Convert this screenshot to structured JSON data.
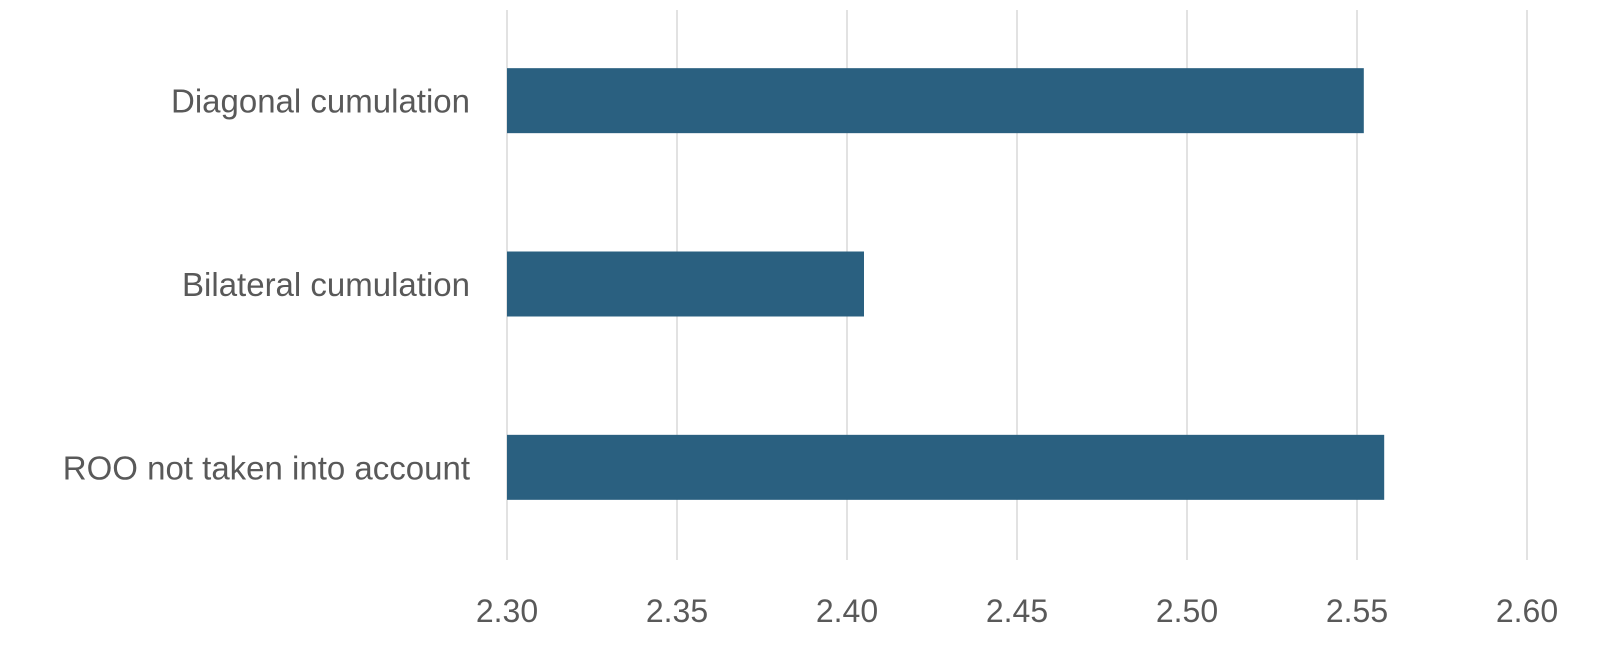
{
  "chart_data": {
    "type": "bar",
    "orientation": "horizontal",
    "categories": [
      "Diagonal cumulation",
      "Bilateral cumulation",
      "ROO not taken into account"
    ],
    "values": [
      2.552,
      2.405,
      2.558
    ],
    "xlim": [
      2.3,
      2.6
    ],
    "ticks": [
      "2.30",
      "2.35",
      "2.40",
      "2.45",
      "2.50",
      "2.55",
      "2.60"
    ],
    "grid": "vertical",
    "legend": "none",
    "bar_color": "#2a6080",
    "grid_color": "#d9d9d9",
    "text_color": "#595959"
  }
}
